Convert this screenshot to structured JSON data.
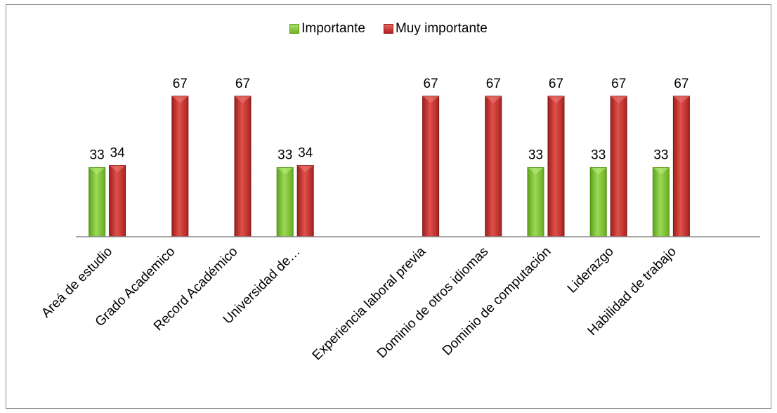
{
  "chart_data": {
    "type": "bar",
    "categories": [
      "Areá de estudio",
      "Grado Academico",
      "Record Académico",
      "Universidad de…",
      "",
      "Experiencia laboral previa",
      "Dominio de otros idiomas",
      "Dominio de computación",
      "Liderazgo",
      "Habilidad de trabajo"
    ],
    "series": [
      {
        "name": "Importante",
        "color": "#7cc130",
        "values": [
          33,
          null,
          null,
          33,
          null,
          null,
          null,
          33,
          33,
          33
        ]
      },
      {
        "name": "Muy importante",
        "color": "#c0302c",
        "values": [
          34,
          67,
          67,
          34,
          null,
          67,
          67,
          67,
          67,
          67
        ]
      }
    ],
    "data_labels": true,
    "legend_position": "top",
    "gridlines": false,
    "ylim": [
      0,
      67
    ]
  },
  "legend": {
    "items": [
      {
        "label": "Importante"
      },
      {
        "label": "Muy importante"
      }
    ]
  }
}
